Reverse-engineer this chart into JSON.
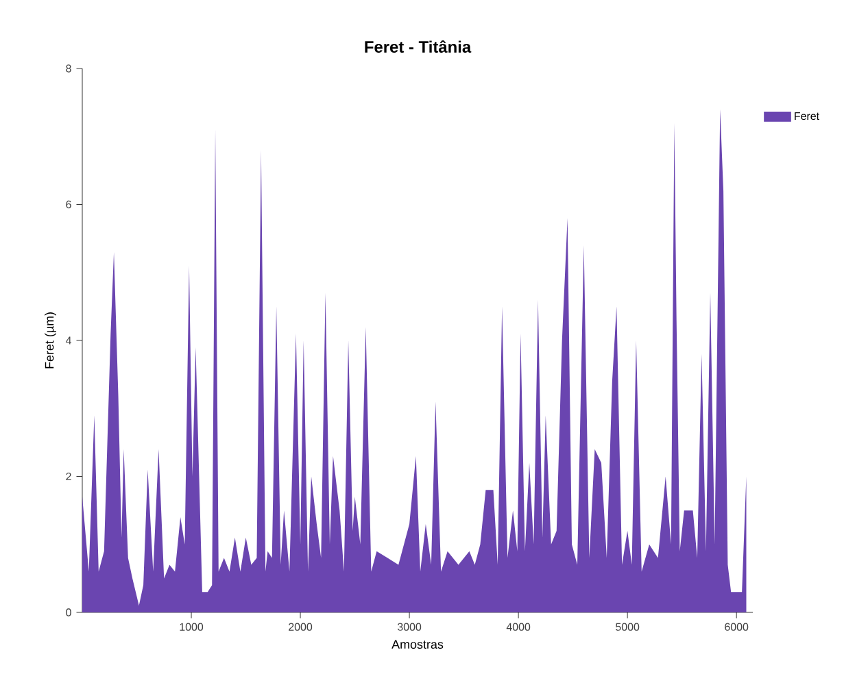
{
  "chart_data": {
    "type": "area",
    "title": "Feret - Titânia",
    "xlabel": "Amostras",
    "ylabel": "Feret (µm)",
    "xlim": [
      0,
      6150
    ],
    "ylim": [
      0,
      8
    ],
    "xticks": [
      1000,
      2000,
      3000,
      4000,
      5000,
      6000
    ],
    "yticks": [
      0,
      2,
      4,
      6,
      8
    ],
    "grid": false,
    "legend": "top right",
    "series": [
      {
        "name": "Feret",
        "color": "#6a45b0",
        "x": [
          0,
          60,
          110,
          150,
          200,
          260,
          290,
          330,
          360,
          380,
          420,
          460,
          520,
          560,
          600,
          650,
          700,
          750,
          800,
          850,
          900,
          940,
          980,
          1010,
          1040,
          1100,
          1150,
          1190,
          1220,
          1250,
          1300,
          1350,
          1400,
          1450,
          1500,
          1550,
          1600,
          1640,
          1680,
          1700,
          1740,
          1780,
          1820,
          1850,
          1900,
          1960,
          2000,
          2030,
          2070,
          2100,
          2150,
          2190,
          2230,
          2270,
          2300,
          2360,
          2400,
          2440,
          2480,
          2500,
          2550,
          2600,
          2650,
          2700,
          2800,
          2900,
          3000,
          3060,
          3100,
          3150,
          3200,
          3240,
          3290,
          3350,
          3450,
          3550,
          3600,
          3650,
          3700,
          3770,
          3810,
          3850,
          3900,
          3950,
          3990,
          4020,
          4060,
          4100,
          4140,
          4180,
          4220,
          4250,
          4300,
          4350,
          4400,
          4450,
          4490,
          4540,
          4600,
          4650,
          4700,
          4760,
          4810,
          4860,
          4900,
          4950,
          5000,
          5040,
          5080,
          5130,
          5200,
          5280,
          5350,
          5400,
          5430,
          5450,
          5480,
          5520,
          5600,
          5640,
          5680,
          5720,
          5760,
          5800,
          5850,
          5880,
          5920,
          5950,
          6000,
          6050,
          6090
        ],
        "values": [
          1.7,
          0.6,
          2.9,
          0.6,
          0.9,
          4.1,
          5.3,
          3.2,
          1.1,
          2.4,
          0.8,
          0.5,
          0.1,
          0.4,
          2.1,
          0.6,
          2.4,
          0.5,
          0.7,
          0.6,
          1.4,
          1.0,
          5.1,
          2.0,
          3.9,
          0.3,
          0.3,
          0.4,
          7.1,
          0.6,
          0.8,
          0.6,
          1.1,
          0.6,
          1.1,
          0.7,
          0.8,
          6.8,
          0.6,
          0.9,
          0.8,
          4.5,
          0.7,
          1.5,
          0.6,
          4.1,
          1.0,
          4.0,
          0.6,
          2.0,
          1.3,
          0.8,
          4.7,
          1.0,
          2.3,
          1.5,
          0.6,
          4.0,
          1.2,
          1.7,
          1.0,
          4.2,
          0.6,
          0.9,
          0.8,
          0.7,
          1.3,
          2.3,
          0.6,
          1.3,
          0.7,
          3.1,
          0.6,
          0.9,
          0.7,
          0.9,
          0.7,
          1.0,
          1.8,
          1.8,
          0.7,
          4.5,
          0.8,
          1.5,
          0.9,
          4.1,
          0.9,
          2.2,
          1.0,
          4.6,
          1.1,
          2.9,
          1.0,
          1.2,
          4.0,
          5.8,
          1.0,
          0.7,
          5.4,
          0.8,
          2.4,
          2.2,
          0.8,
          3.4,
          4.5,
          0.7,
          1.2,
          0.7,
          4.0,
          0.6,
          1.0,
          0.8,
          2.0,
          1.0,
          7.2,
          4.3,
          0.9,
          1.5,
          1.5,
          0.8,
          3.8,
          0.9,
          4.7,
          1.0,
          7.4,
          6.2,
          0.7,
          0.3,
          0.3,
          0.3,
          2.0
        ]
      }
    ]
  }
}
